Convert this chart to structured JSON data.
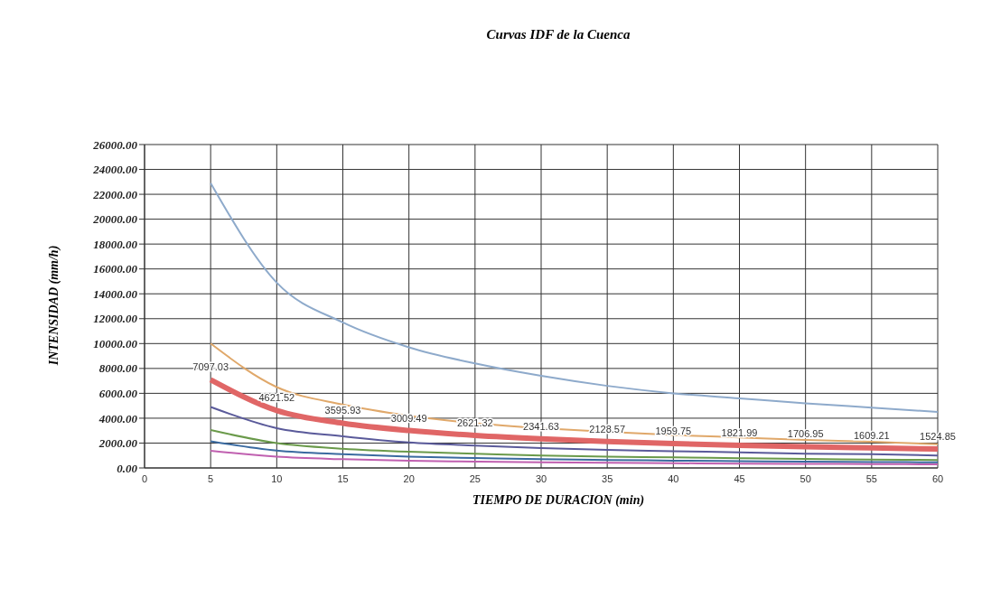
{
  "chart_data": {
    "type": "line",
    "title": "Curvas IDF de la Cuenca",
    "xlabel": "TIEMPO DE DURACION (min)",
    "ylabel": "INTENSIDAD (mm/h)",
    "x": [
      5,
      10,
      15,
      20,
      25,
      30,
      35,
      40,
      45,
      50,
      55,
      60
    ],
    "xlim": [
      0,
      60
    ],
    "xticks": [
      0,
      5,
      10,
      15,
      20,
      25,
      30,
      35,
      40,
      45,
      50,
      55,
      60
    ],
    "ylim": [
      0,
      26000
    ],
    "yticks": [
      {
        "value": 0,
        "label": "0.00"
      },
      {
        "value": 2000,
        "label": "2000.00"
      },
      {
        "value": 4000,
        "label": "4000.00"
      },
      {
        "value": 6000,
        "label": "6000.00"
      },
      {
        "value": 8000,
        "label": "8000.00"
      },
      {
        "value": 10000,
        "label": "10000.00"
      },
      {
        "value": 12000,
        "label": "12000.00"
      },
      {
        "value": 14000,
        "label": "14000.00"
      },
      {
        "value": 16000,
        "label": "16000.00"
      },
      {
        "value": 18000,
        "label": "18000.00"
      },
      {
        "value": 20000,
        "label": "20000.00"
      },
      {
        "value": 22000,
        "label": "22000.00"
      },
      {
        "value": 24000,
        "label": "24000.00"
      },
      {
        "value": 26000,
        "label": "26000.00"
      }
    ],
    "grid": true,
    "marker": "none",
    "line_style": "solid",
    "series": [
      {
        "color": "#8eaacb",
        "values": [
          22900,
          14900,
          11700,
          9700,
          8400,
          7400,
          6600,
          6000,
          5600,
          5200,
          4850,
          4500
        ]
      },
      {
        "color": "#e0a86a",
        "values": [
          10000,
          6500,
          5100,
          4200,
          3600,
          3200,
          2900,
          2650,
          2450,
          2250,
          2100,
          1900
        ]
      },
      {
        "color": "#e06666",
        "values": [
          7097.03,
          4621.52,
          3595.93,
          3009.49,
          2621.32,
          2341.63,
          2128.57,
          1959.75,
          1821.99,
          1706.95,
          1609.21,
          1524.85
        ],
        "value_labels": [
          "7097.03",
          "4621.52",
          "3595.93",
          "3009.49",
          "2621.32",
          "2341.63",
          "2128.57",
          "1959.75",
          "1821.99",
          "1706.95",
          "1609.21",
          "1524.85"
        ]
      },
      {
        "color": "#5a5a9a",
        "values": [
          4900,
          3200,
          2550,
          2050,
          1800,
          1600,
          1450,
          1350,
          1250,
          1150,
          1100,
          1000
        ]
      },
      {
        "color": "#6a9a4a",
        "values": [
          3050,
          2000,
          1550,
          1300,
          1150,
          1000,
          900,
          850,
          780,
          720,
          680,
          640
        ]
      },
      {
        "color": "#3a6aa0",
        "values": [
          2150,
          1400,
          1100,
          900,
          800,
          700,
          640,
          590,
          550,
          510,
          480,
          450
        ]
      },
      {
        "color": "#c060b0",
        "values": [
          1380,
          900,
          700,
          580,
          510,
          450,
          410,
          380,
          350,
          330,
          310,
          290
        ]
      }
    ]
  }
}
